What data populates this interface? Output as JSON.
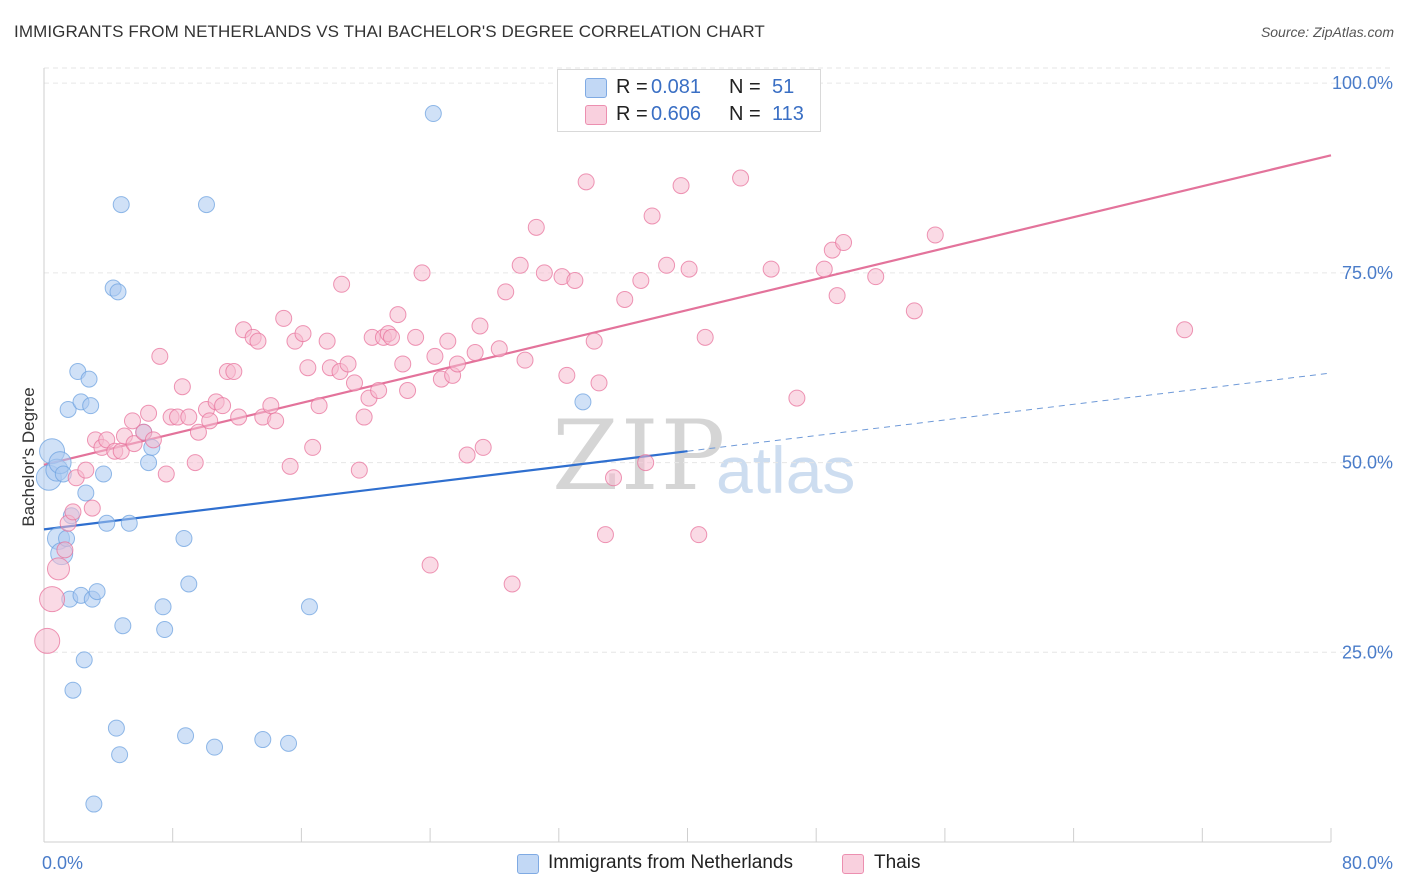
{
  "title": "IMMIGRANTS FROM NETHERLANDS VS THAI BACHELOR'S DEGREE CORRELATION CHART",
  "source": "Source: ZipAtlas.com",
  "watermark": {
    "zip": "ZIP",
    "atlas": "atlas"
  },
  "legend": {
    "rows": [
      {
        "r_label": "R =",
        "r_value": "0.081",
        "n_label": "N =",
        "n_value": "51",
        "color": "#a9c8f0"
      },
      {
        "r_label": "R =",
        "r_value": "0.606",
        "n_label": "N =",
        "n_value": "113",
        "color": "#f6bcd0"
      }
    ]
  },
  "bottom_legend": [
    {
      "label": "Immigrants from Netherlands",
      "color": "#a9c8f0"
    },
    {
      "label": "Thais",
      "color": "#f6bcd0"
    }
  ],
  "chart_data": {
    "type": "scatter",
    "title": "IMMIGRANTS FROM NETHERLANDS VS THAI BACHELOR'S DEGREE CORRELATION CHART",
    "xlabel": "",
    "ylabel": "Bachelor's Degree",
    "xlim": [
      0,
      80
    ],
    "ylim": [
      0,
      102
    ],
    "x_tick_labels": [
      "0.0%",
      "80.0%"
    ],
    "y_ticks": [
      25,
      50,
      75,
      100
    ],
    "y_tick_labels": [
      "25.0%",
      "50.0%",
      "75.0%",
      "100.0%"
    ],
    "grid": true,
    "legend_position": "top-center",
    "series": [
      {
        "name": "Immigrants from Netherlands",
        "color": "#6fa3e0",
        "fill": "#a9c8f0",
        "trend": {
          "x0": 0,
          "y0": 41.2,
          "x1": 40,
          "y1": 51.5,
          "dashed_to_x": 80,
          "dashed_to_y": 61.8
        },
        "points": [
          [
            0.3,
            48
          ],
          [
            0.5,
            51.5
          ],
          [
            0.8,
            49
          ],
          [
            0.9,
            40
          ],
          [
            1.0,
            50
          ],
          [
            1.1,
            38
          ],
          [
            1.2,
            48.5
          ],
          [
            1.4,
            40
          ],
          [
            1.5,
            57
          ],
          [
            1.6,
            32
          ],
          [
            1.7,
            43
          ],
          [
            1.8,
            20
          ],
          [
            2.1,
            62
          ],
          [
            2.3,
            58
          ],
          [
            2.3,
            32.5
          ],
          [
            2.5,
            24
          ],
          [
            2.6,
            46
          ],
          [
            2.8,
            61
          ],
          [
            2.9,
            57.5
          ],
          [
            3.0,
            32
          ],
          [
            3.1,
            5
          ],
          [
            3.3,
            33
          ],
          [
            3.7,
            48.5
          ],
          [
            3.9,
            42
          ],
          [
            4.3,
            73
          ],
          [
            4.5,
            15
          ],
          [
            4.6,
            72.5
          ],
          [
            4.7,
            11.5
          ],
          [
            4.8,
            84
          ],
          [
            4.9,
            28.5
          ],
          [
            5.3,
            42
          ],
          [
            6.2,
            54
          ],
          [
            6.5,
            50
          ],
          [
            6.7,
            52
          ],
          [
            7.4,
            31
          ],
          [
            7.5,
            28
          ],
          [
            8.7,
            40
          ],
          [
            8.8,
            14
          ],
          [
            9.0,
            34
          ],
          [
            10.1,
            84
          ],
          [
            10.6,
            12.5
          ],
          [
            13.6,
            13.5
          ],
          [
            15.2,
            13
          ],
          [
            16.5,
            31
          ],
          [
            24.2,
            96
          ],
          [
            33.5,
            58
          ]
        ]
      },
      {
        "name": "Thais",
        "color": "#e8739c",
        "fill": "#f6bcd0",
        "trend": {
          "x0": 0,
          "y0": 49.7,
          "x1": 80,
          "y1": 90.5
        },
        "points": [
          [
            0.2,
            26.5
          ],
          [
            0.5,
            32
          ],
          [
            0.9,
            36
          ],
          [
            1.3,
            38.5
          ],
          [
            1.5,
            42
          ],
          [
            1.8,
            43.5
          ],
          [
            2.0,
            48
          ],
          [
            2.6,
            49
          ],
          [
            3.0,
            44
          ],
          [
            3.2,
            53
          ],
          [
            3.6,
            52
          ],
          [
            3.9,
            53
          ],
          [
            4.4,
            51.5
          ],
          [
            4.8,
            51.5
          ],
          [
            5.0,
            53.5
          ],
          [
            5.5,
            55.5
          ],
          [
            5.6,
            52.5
          ],
          [
            6.2,
            54
          ],
          [
            6.5,
            56.5
          ],
          [
            6.8,
            53
          ],
          [
            7.2,
            64
          ],
          [
            7.6,
            48.5
          ],
          [
            7.9,
            56
          ],
          [
            8.3,
            56
          ],
          [
            8.6,
            60
          ],
          [
            9.0,
            56
          ],
          [
            9.4,
            50
          ],
          [
            9.6,
            54
          ],
          [
            10.1,
            57
          ],
          [
            10.3,
            55.5
          ],
          [
            10.7,
            58
          ],
          [
            11.1,
            57.5
          ],
          [
            11.4,
            62
          ],
          [
            11.8,
            62
          ],
          [
            12.1,
            56
          ],
          [
            12.4,
            67.5
          ],
          [
            13.0,
            66.5
          ],
          [
            13.3,
            66
          ],
          [
            13.6,
            56
          ],
          [
            14.1,
            57.5
          ],
          [
            14.4,
            55.5
          ],
          [
            14.9,
            69
          ],
          [
            15.3,
            49.5
          ],
          [
            15.6,
            66
          ],
          [
            16.1,
            67
          ],
          [
            16.4,
            62.5
          ],
          [
            16.7,
            52
          ],
          [
            17.1,
            57.5
          ],
          [
            17.6,
            66
          ],
          [
            17.8,
            62.5
          ],
          [
            18.4,
            62
          ],
          [
            18.5,
            73.5
          ],
          [
            18.9,
            63
          ],
          [
            19.3,
            60.5
          ],
          [
            19.6,
            49
          ],
          [
            19.9,
            56
          ],
          [
            20.2,
            58.5
          ],
          [
            20.4,
            66.5
          ],
          [
            20.8,
            59.5
          ],
          [
            21.1,
            66.5
          ],
          [
            21.4,
            67
          ],
          [
            21.6,
            66.5
          ],
          [
            22.0,
            69.5
          ],
          [
            22.3,
            63
          ],
          [
            22.6,
            59.5
          ],
          [
            23.1,
            66.5
          ],
          [
            23.5,
            75
          ],
          [
            24.0,
            36.5
          ],
          [
            24.3,
            64
          ],
          [
            24.7,
            61
          ],
          [
            25.1,
            66
          ],
          [
            25.4,
            61.5
          ],
          [
            25.7,
            63
          ],
          [
            26.3,
            51
          ],
          [
            26.8,
            64.5
          ],
          [
            27.1,
            68
          ],
          [
            27.3,
            52
          ],
          [
            28.3,
            65
          ],
          [
            28.7,
            72.5
          ],
          [
            29.1,
            34
          ],
          [
            29.6,
            76
          ],
          [
            29.9,
            63.5
          ],
          [
            30.6,
            81
          ],
          [
            31.1,
            75
          ],
          [
            32.2,
            74.5
          ],
          [
            32.5,
            61.5
          ],
          [
            33.0,
            74
          ],
          [
            33.7,
            87
          ],
          [
            34.2,
            66
          ],
          [
            34.5,
            60.5
          ],
          [
            34.9,
            40.5
          ],
          [
            35.4,
            48
          ],
          [
            36.1,
            71.5
          ],
          [
            37.1,
            74
          ],
          [
            37.4,
            50
          ],
          [
            37.8,
            82.5
          ],
          [
            38.7,
            76
          ],
          [
            39.6,
            86.5
          ],
          [
            40.1,
            75.5
          ],
          [
            40.7,
            40.5
          ],
          [
            41.1,
            66.5
          ],
          [
            43.3,
            87.5
          ],
          [
            45.2,
            75.5
          ],
          [
            46.8,
            58.5
          ],
          [
            48.5,
            75.5
          ],
          [
            49.0,
            78
          ],
          [
            49.3,
            72
          ],
          [
            49.7,
            79
          ],
          [
            51.7,
            74.5
          ],
          [
            54.1,
            70
          ],
          [
            55.4,
            80
          ],
          [
            70.9,
            67.5
          ]
        ]
      }
    ]
  }
}
